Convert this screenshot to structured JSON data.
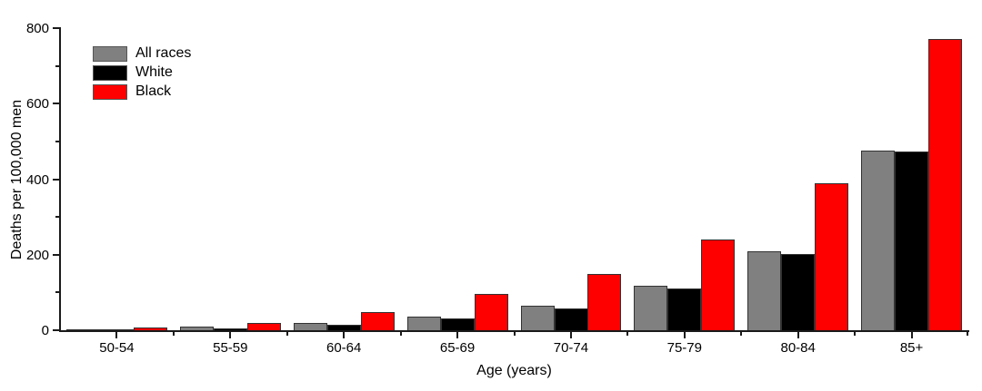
{
  "chart_data": {
    "type": "bar",
    "title": "",
    "xlabel": "Age (years)",
    "ylabel": "Deaths per 100,000 men",
    "categories": [
      "50-54",
      "55-59",
      "60-64",
      "65-69",
      "70-74",
      "75-79",
      "80-84",
      "85+"
    ],
    "series": [
      {
        "name": "All races",
        "color": "#808080",
        "values": [
          3,
          9,
          19,
          37,
          64,
          117,
          208,
          475
        ]
      },
      {
        "name": "White",
        "color": "#000000",
        "values": [
          2,
          6,
          14,
          32,
          57,
          110,
          203,
          473
        ]
      },
      {
        "name": "Black",
        "color": "#ff0000",
        "values": [
          8,
          20,
          48,
          96,
          150,
          240,
          390,
          770
        ]
      }
    ],
    "ylim": [
      0,
      800
    ],
    "yticks_major": [
      0,
      200,
      400,
      600,
      800
    ],
    "yticks_minor": [
      100,
      300,
      500,
      700
    ],
    "grid": false,
    "legend_position": "top-left",
    "axis_color": "#1a1a1a",
    "bar_border_color": "#333333"
  }
}
